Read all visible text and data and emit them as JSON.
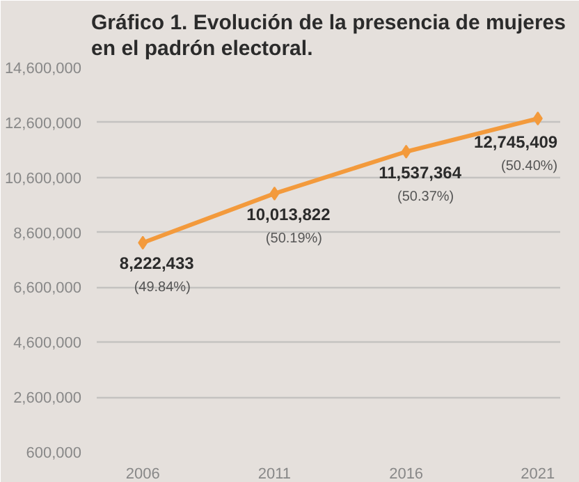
{
  "chart_data": {
    "type": "line",
    "title": "Gráfico 1. Evolución de la presencia de mujeres en el padrón electoral.",
    "categories": [
      "2006",
      "2011",
      "2016",
      "2021"
    ],
    "series": [
      {
        "color": "#f39a3c",
        "values": [
          8222433,
          10013822,
          11537364,
          12745409
        ],
        "value_labels": [
          "8,222,433",
          "10,013,822",
          "11,537,364",
          "12,745,409"
        ]
      }
    ],
    "annotations": [
      {
        "text": "(49.84%)",
        "x": "2006",
        "y": 8222433
      },
      {
        "text": "(50.19%)",
        "x": "2011",
        "y": 10013822
      },
      {
        "text": "(50.37%)",
        "x": "2016",
        "y": 11537364
      },
      {
        "text": "(50.40%)",
        "x": "2021",
        "y": 12745409
      }
    ],
    "ylim": [
      600000,
      14600000
    ],
    "yticks": [
      {
        "value": 600000,
        "label": "600,000"
      },
      {
        "value": 2600000,
        "label": "2,600,000"
      },
      {
        "value": 4600000,
        "label": "4,600,000"
      },
      {
        "value": 6600000,
        "label": "6,600,000"
      },
      {
        "value": 8600000,
        "label": "8,600,000"
      },
      {
        "value": 10600000,
        "label": "10,600,000"
      },
      {
        "value": 12600000,
        "label": "12,600,000"
      },
      {
        "value": 14600000,
        "label": "14,600,000"
      }
    ],
    "grid": "y",
    "marker": "diamond",
    "line_style": "solid"
  }
}
